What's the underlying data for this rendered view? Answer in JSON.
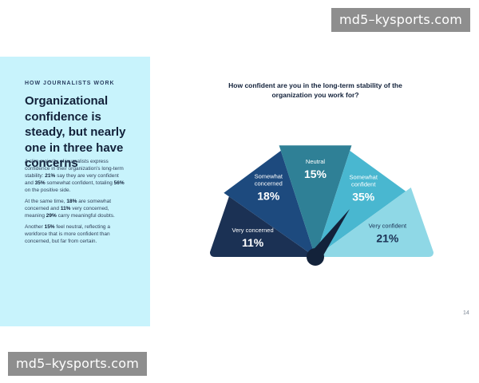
{
  "watermark": {
    "top": "md5–kysports.com",
    "bottom": "md5–kysports.com"
  },
  "sidebar": {
    "eyebrow": "HOW JOURNALISTS WORK",
    "headline": "Organizational confidence is steady, but nearly one in three have concerns",
    "paragraphs": [
      {
        "parts": [
          {
            "t": "A slim majority of journalists express confidence in their organization’s long-term stability: "
          },
          {
            "t": "21%",
            "b": true
          },
          {
            "t": " say they are very confident and "
          },
          {
            "t": "35%",
            "b": true
          },
          {
            "t": " somewhat confident, totaling "
          },
          {
            "t": "56%",
            "b": true
          },
          {
            "t": " on the positive side."
          }
        ]
      },
      {
        "parts": [
          {
            "t": "At the same time, "
          },
          {
            "t": "18%",
            "b": true
          },
          {
            "t": " are somewhat concerned and "
          },
          {
            "t": "11%",
            "b": true
          },
          {
            "t": " very concerned, meaning "
          },
          {
            "t": "29%",
            "b": true
          },
          {
            "t": " carry meaningful doubts."
          }
        ]
      },
      {
        "parts": [
          {
            "t": "Another "
          },
          {
            "t": "15%",
            "b": true
          },
          {
            "t": " feel neutral, reflecting a workforce that is more confident than concerned, but far from certain."
          }
        ]
      }
    ]
  },
  "page_number": "14",
  "chart_data": {
    "type": "gauge",
    "title": "How confident are you in the long-term stability of the organization you work for?",
    "segments": [
      {
        "label_lines": [
          "Very concerned"
        ],
        "value_label": "11%",
        "value": 11,
        "color": "#1b3154"
      },
      {
        "label_lines": [
          "Somewhat",
          "concerned"
        ],
        "value_label": "18%",
        "value": 18,
        "color": "#1d4a7e"
      },
      {
        "label_lines": [
          "Neutral"
        ],
        "value_label": "15%",
        "value": 15,
        "color": "#2f8096"
      },
      {
        "label_lines": [
          "Somewhat",
          "confident"
        ],
        "value_label": "35%",
        "value": 35,
        "color": "#49b7d0"
      },
      {
        "label_lines": [
          "Very confident"
        ],
        "value_label": "21%",
        "value": 21,
        "color": "#8fd8e6"
      }
    ],
    "needle_color": "#13223a",
    "label_colors": [
      "#ffffff",
      "#ffffff",
      "#ffffff",
      "#ffffff",
      "#1b3154"
    ]
  }
}
